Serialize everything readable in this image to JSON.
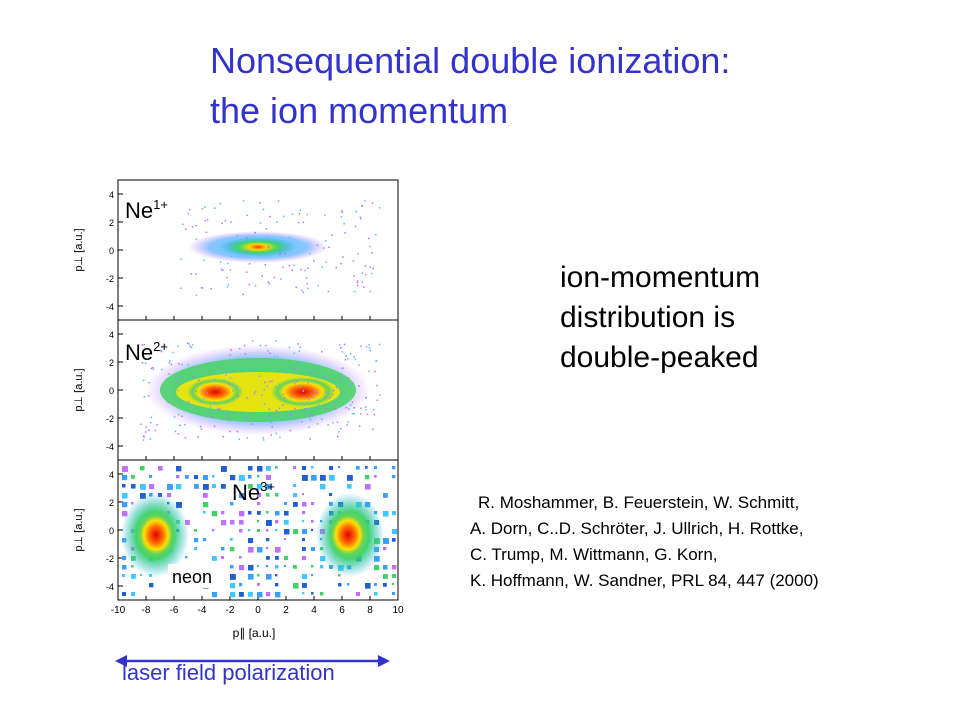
{
  "title": {
    "line1": "Nonsequential double ionization:",
    "line2": "the ion momentum"
  },
  "claim": {
    "line1": "ion-momentum",
    "line2": "distribution is",
    "line3": "double-peaked"
  },
  "reference": {
    "line1": "R. Moshammer, B. Feuerstein, W. Schmitt,",
    "line2": "A. Dorn, C..D. Schröter, J. Ullrich, H. Rottke,",
    "line3": "C. Trump, M. Wittmann, G. Korn,",
    "line4": "K. Hoffmann, W. Sandner, PRL 84, 447 (2000)"
  },
  "polarization_label": "laser field polarization",
  "figure": {
    "panels": [
      {
        "label_base": "Ne",
        "label_sup": "1+"
      },
      {
        "label_base": "Ne",
        "label_sup": "2+"
      },
      {
        "label_base": "Ne",
        "label_sup": "3+"
      }
    ],
    "neon_label": "neon",
    "y_label": "p⊥  [a.u.]",
    "x_label": "p∥  [a.u.]",
    "y_ticks": [
      "4",
      "2",
      "0",
      "-2",
      "-4"
    ],
    "x_ticks": [
      "-10",
      "-8",
      "-6",
      "-4",
      "-2",
      "0",
      "2",
      "4",
      "6",
      "8",
      "10"
    ]
  },
  "colors": {
    "title": "#3333cc",
    "polarization": "#3333cc",
    "arrow": "#3333cc"
  }
}
